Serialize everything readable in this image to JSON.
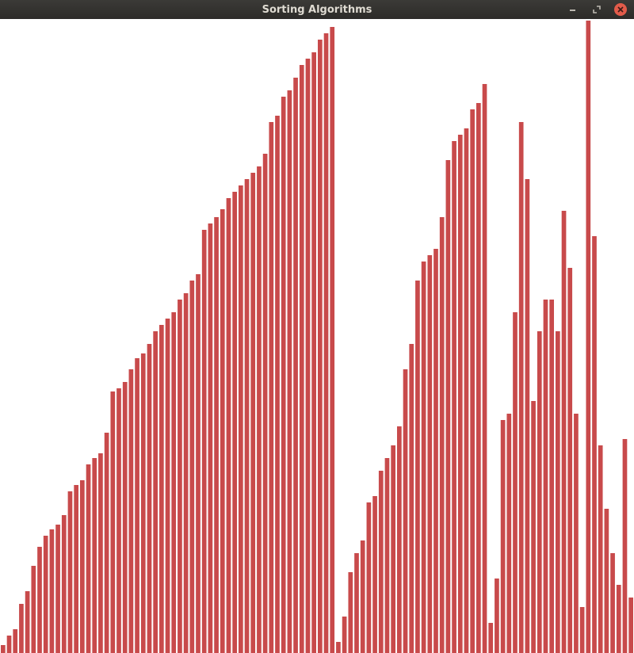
{
  "window": {
    "title": "Sorting Algorithms",
    "controls": {
      "minimize": "minimize-icon",
      "maximize": "maximize-icon",
      "close": "close-icon"
    }
  },
  "colors": {
    "bar": "#c84a4b",
    "background": "#ffffff",
    "titlebar": "#2f2e2b",
    "close": "#e25b4a"
  },
  "chart_data": {
    "type": "bar",
    "ylim": [
      0,
      800
    ],
    "values": [
      10,
      22,
      30,
      62,
      78,
      110,
      134,
      148,
      156,
      162,
      174,
      204,
      212,
      218,
      238,
      246,
      252,
      278,
      330,
      334,
      342,
      358,
      372,
      378,
      390,
      406,
      414,
      422,
      430,
      446,
      454,
      470,
      478,
      534,
      542,
      550,
      560,
      574,
      582,
      590,
      598,
      606,
      614,
      630,
      670,
      678,
      702,
      710,
      726,
      742,
      750,
      758,
      774,
      782,
      790,
      14,
      46,
      102,
      126,
      142,
      190,
      198,
      230,
      246,
      262,
      286,
      358,
      390,
      470,
      494,
      502,
      510,
      550,
      622,
      646,
      654,
      662,
      686,
      694,
      718,
      38,
      94,
      294,
      302,
      430,
      670,
      598,
      318,
      406,
      446,
      446,
      406,
      558,
      486,
      302,
      58,
      798,
      526,
      262,
      182,
      126,
      86,
      270,
      70
    ]
  }
}
